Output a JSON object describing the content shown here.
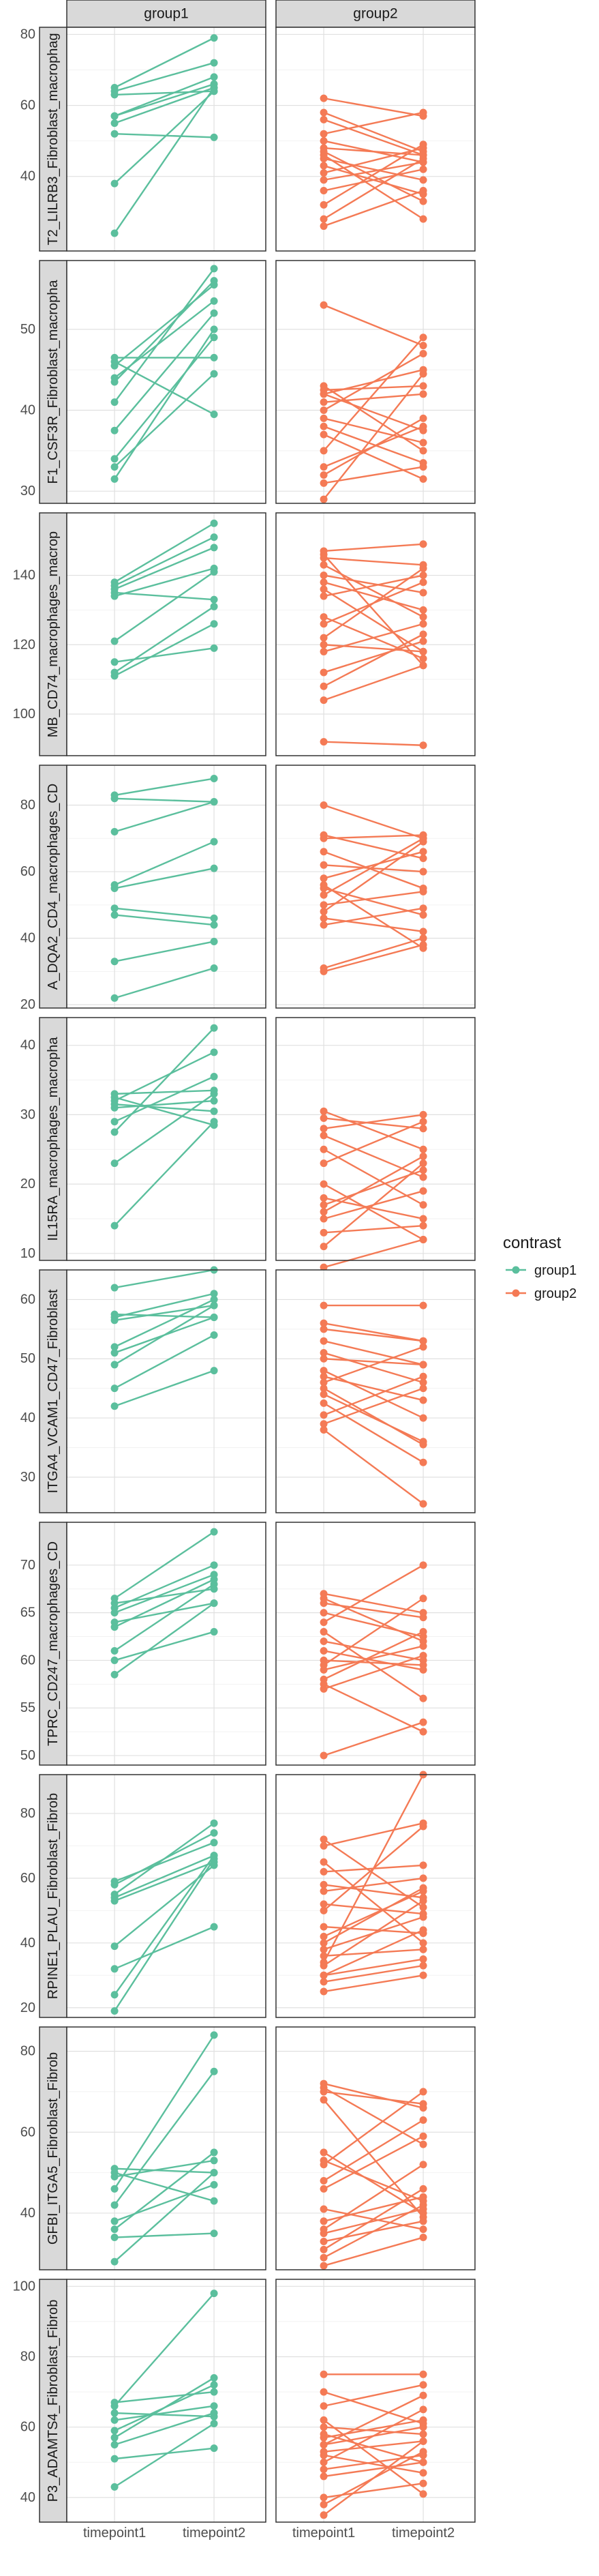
{
  "chart_data": {
    "type": "line",
    "facet_columns": [
      "group1",
      "group2"
    ],
    "x_categories": [
      "timepoint1",
      "timepoint2"
    ],
    "legend": {
      "title": "contrast",
      "position": "right",
      "entries": [
        {
          "label": "group1",
          "color": "#5bbf9d"
        },
        {
          "label": "group2",
          "color": "#f47a55"
        }
      ]
    },
    "grid": true,
    "rows": [
      {
        "label": "T2_LILRB3_Fibroblast_macrophag",
        "ylim": [
          19,
          82
        ],
        "yticks": [
          40,
          60,
          80
        ],
        "panels": {
          "group1": [
            [
              24,
              65
            ],
            [
              38,
              64
            ],
            [
              52,
              51
            ],
            [
              55,
              65
            ],
            [
              57,
              66
            ],
            [
              57,
              68
            ],
            [
              63,
              64
            ],
            [
              64,
              72
            ],
            [
              65,
              79
            ]
          ],
          "group2": [
            [
              26,
              36
            ],
            [
              28,
              45
            ],
            [
              32,
              49
            ],
            [
              36,
              42
            ],
            [
              39,
              44
            ],
            [
              41,
              48
            ],
            [
              43,
              35
            ],
            [
              45,
              39
            ],
            [
              46,
              28
            ],
            [
              47,
              33
            ],
            [
              48,
              46
            ],
            [
              50,
              44
            ],
            [
              52,
              58
            ],
            [
              56,
              46
            ],
            [
              58,
              47
            ],
            [
              62,
              57
            ]
          ]
        }
      },
      {
        "label": "F1_CSF3R_Fibroblast_macropha",
        "ylim": [
          28.5,
          58.5
        ],
        "yticks": [
          30,
          40,
          50
        ],
        "panels": {
          "group1": [
            [
              31.5,
              50
            ],
            [
              33,
              44.5
            ],
            [
              34,
              49
            ],
            [
              37.5,
              52
            ],
            [
              41,
              57.5
            ],
            [
              43.5,
              56
            ],
            [
              44,
              53.5
            ],
            [
              45.5,
              55.5
            ],
            [
              46.5,
              46.5
            ],
            [
              46,
              39.5
            ]
          ],
          "group2": [
            [
              29,
              44.5
            ],
            [
              31,
              33
            ],
            [
              32,
              39
            ],
            [
              33,
              38
            ],
            [
              35,
              49
            ],
            [
              37,
              31.5
            ],
            [
              39,
              36
            ],
            [
              40,
              47
            ],
            [
              41,
              42
            ],
            [
              42,
              37.5
            ],
            [
              42,
              45
            ],
            [
              42.5,
              43
            ],
            [
              43,
              35
            ],
            [
              53,
              48
            ],
            [
              38,
              33.5
            ]
          ]
        }
      },
      {
        "label": "MB_CD74_macrophages_macrop",
        "ylim": [
          88,
          158
        ],
        "yticks": [
          100,
          120,
          140
        ],
        "panels": {
          "group1": [
            [
              111,
              126
            ],
            [
              112,
              131
            ],
            [
              115,
              119
            ],
            [
              121,
              141
            ],
            [
              134,
              142
            ],
            [
              135,
              133
            ],
            [
              136,
              148
            ],
            [
              137,
              151
            ],
            [
              138,
              155
            ]
          ],
          "group2": [
            [
              92,
              91
            ],
            [
              104,
              114
            ],
            [
              108,
              123
            ],
            [
              112,
              121
            ],
            [
              118,
              126
            ],
            [
              120,
              118
            ],
            [
              122,
              142
            ],
            [
              126,
              138
            ],
            [
              128,
              116
            ],
            [
              134,
              140
            ],
            [
              136,
              118
            ],
            [
              138,
              130
            ],
            [
              140,
              135
            ],
            [
              143,
              128
            ],
            [
              146,
              114
            ],
            [
              147,
              149
            ],
            [
              145,
              143
            ]
          ]
        }
      },
      {
        "label": "A_DQA2_CD4_macrophages_CD",
        "ylim": [
          19,
          92
        ],
        "yticks": [
          20,
          40,
          60,
          80
        ],
        "panels": {
          "group1": [
            [
              22,
              31
            ],
            [
              33,
              39
            ],
            [
              47,
              44
            ],
            [
              49,
              46
            ],
            [
              55,
              61
            ],
            [
              56,
              69
            ],
            [
              72,
              81
            ],
            [
              82,
              81
            ],
            [
              83,
              88
            ]
          ],
          "group2": [
            [
              30,
              38
            ],
            [
              31,
              40
            ],
            [
              44,
              49
            ],
            [
              46,
              42
            ],
            [
              48,
              69
            ],
            [
              50,
              54
            ],
            [
              53,
              70
            ],
            [
              55,
              47
            ],
            [
              56,
              37
            ],
            [
              58,
              66
            ],
            [
              62,
              60
            ],
            [
              66,
              55
            ],
            [
              70,
              71
            ],
            [
              71,
              64
            ],
            [
              80,
              70
            ]
          ]
        }
      },
      {
        "label": "IL15RA_macrophages_macropha",
        "ylim": [
          9,
          44
        ],
        "yticks": [
          10,
          20,
          30,
          40
        ],
        "panels": {
          "group1": [
            [
              14,
              29
            ],
            [
              23,
              33
            ],
            [
              27.5,
              42.5
            ],
            [
              29,
              35.5
            ],
            [
              31,
              32
            ],
            [
              32,
              39
            ],
            [
              32.5,
              28.5
            ],
            [
              33,
              33.5
            ],
            [
              31.5,
              30.5
            ]
          ],
          "group2": [
            [
              8,
              12
            ],
            [
              11,
              23
            ],
            [
              13,
              14
            ],
            [
              15,
              19
            ],
            [
              16,
              24
            ],
            [
              17,
              22
            ],
            [
              18,
              15
            ],
            [
              20,
              12
            ],
            [
              23,
              29
            ],
            [
              25,
              17
            ],
            [
              27,
              21
            ],
            [
              28,
              30
            ],
            [
              30.5,
              25
            ],
            [
              29.5,
              28
            ]
          ]
        }
      },
      {
        "label": "ITGA4_VCAM1_CD47_Fibroblast",
        "ylim": [
          24,
          65
        ],
        "yticks": [
          30,
          40,
          50,
          60
        ],
        "panels": {
          "group1": [
            [
              42,
              48
            ],
            [
              45,
              54
            ],
            [
              49,
              59
            ],
            [
              51,
              57
            ],
            [
              52,
              60
            ],
            [
              56.5,
              59
            ],
            [
              57,
              61
            ],
            [
              57.5,
              57
            ],
            [
              62,
              65
            ]
          ],
          "group2": [
            [
              38,
              25.5
            ],
            [
              39,
              45
            ],
            [
              40.5,
              47
            ],
            [
              42.5,
              32.5
            ],
            [
              44,
              36
            ],
            [
              46,
              52
            ],
            [
              47,
              43
            ],
            [
              48,
              40
            ],
            [
              50,
              49
            ],
            [
              51,
              46
            ],
            [
              53,
              49
            ],
            [
              55,
              53
            ],
            [
              56,
              53
            ],
            [
              59,
              59
            ],
            [
              45,
              35.5
            ]
          ]
        }
      },
      {
        "label": "TPRC_CD247_macrophages_CD",
        "ylim": [
          49,
          74.5
        ],
        "yticks": [
          50,
          55,
          60,
          65,
          70
        ],
        "panels": {
          "group1": [
            [
              58.5,
              66
            ],
            [
              60,
              63
            ],
            [
              61,
              68
            ],
            [
              64,
              66
            ],
            [
              65,
              69
            ],
            [
              65.5,
              70
            ],
            [
              66,
              67.5
            ],
            [
              66.5,
              73.5
            ],
            [
              63.5,
              68.5
            ]
          ],
          "group2": [
            [
              50,
              53.5
            ],
            [
              57.5,
              52.5
            ],
            [
              58,
              63
            ],
            [
              59,
              61.5
            ],
            [
              59.5,
              66.5
            ],
            [
              61,
              59
            ],
            [
              62,
              60
            ],
            [
              63,
              56
            ],
            [
              65,
              62.5
            ],
            [
              66,
              64.5
            ],
            [
              67,
              65
            ],
            [
              64,
              70
            ],
            [
              60,
              59.5
            ],
            [
              57,
              60.5
            ],
            [
              66.5,
              62
            ]
          ]
        }
      },
      {
        "label": "RPINE1_PLAU_Fibroblast_Fibrob",
        "ylim": [
          17,
          92
        ],
        "yticks": [
          20,
          40,
          60,
          80
        ],
        "panels": {
          "group1": [
            [
              19,
              66
            ],
            [
              24,
              67
            ],
            [
              32,
              45
            ],
            [
              39,
              64
            ],
            [
              53,
              65
            ],
            [
              54,
              67
            ],
            [
              55,
              77
            ],
            [
              58,
              74
            ],
            [
              59,
              71
            ]
          ],
          "group2": [
            [
              25,
              30
            ],
            [
              28,
              33
            ],
            [
              30,
              44
            ],
            [
              33,
              53
            ],
            [
              34,
              92
            ],
            [
              36,
              38
            ],
            [
              38,
              48
            ],
            [
              40,
              57
            ],
            [
              42,
              56
            ],
            [
              45,
              43
            ],
            [
              50,
              76
            ],
            [
              52,
              49
            ],
            [
              56,
              60
            ],
            [
              58,
              54
            ],
            [
              62,
              64
            ],
            [
              65,
              40
            ],
            [
              70,
              77
            ],
            [
              72,
              51
            ],
            [
              30,
              35
            ]
          ]
        }
      },
      {
        "label": "GFBI_ITGA5_Fibroblast_Fibrob",
        "ylim": [
          26,
          86
        ],
        "yticks": [
          40,
          60,
          80
        ],
        "panels": {
          "group1": [
            [
              28,
              50
            ],
            [
              34,
              35
            ],
            [
              36,
              55
            ],
            [
              38,
              47
            ],
            [
              42,
              75
            ],
            [
              46,
              84
            ],
            [
              49,
              53
            ],
            [
              51,
              50
            ],
            [
              50,
              43
            ]
          ],
          "group2": [
            [
              27,
              34
            ],
            [
              29,
              42
            ],
            [
              31,
              46
            ],
            [
              33,
              38
            ],
            [
              35,
              41
            ],
            [
              36,
              52
            ],
            [
              38,
              44
            ],
            [
              41,
              36
            ],
            [
              46,
              59
            ],
            [
              48,
              63
            ],
            [
              52,
              70
            ],
            [
              55,
              40
            ],
            [
              68,
              39
            ],
            [
              70,
              67
            ],
            [
              71,
              57
            ],
            [
              72,
              66
            ],
            [
              53,
              43
            ]
          ]
        }
      },
      {
        "label": "P3_ADAMTS4_Fibroblast_Fibrob",
        "ylim": [
          33,
          102
        ],
        "yticks": [
          40,
          60,
          80,
          100
        ],
        "panels": {
          "group1": [
            [
              43,
              61
            ],
            [
              51,
              54
            ],
            [
              55,
              64
            ],
            [
              57,
              74
            ],
            [
              59,
              72
            ],
            [
              64,
              63
            ],
            [
              66,
              98
            ],
            [
              67,
              70
            ],
            [
              62,
              66
            ]
          ],
          "group2": [
            [
              35,
              56
            ],
            [
              38,
              53
            ],
            [
              40,
              44
            ],
            [
              46,
              50
            ],
            [
              48,
              52
            ],
            [
              50,
              65
            ],
            [
              52,
              47
            ],
            [
              55,
              60
            ],
            [
              57,
              62
            ],
            [
              60,
              58
            ],
            [
              62,
              41
            ],
            [
              66,
              72
            ],
            [
              70,
              61
            ],
            [
              75,
              75
            ],
            [
              58,
              50
            ],
            [
              55,
              69
            ],
            [
              53,
              56
            ]
          ]
        }
      }
    ]
  }
}
